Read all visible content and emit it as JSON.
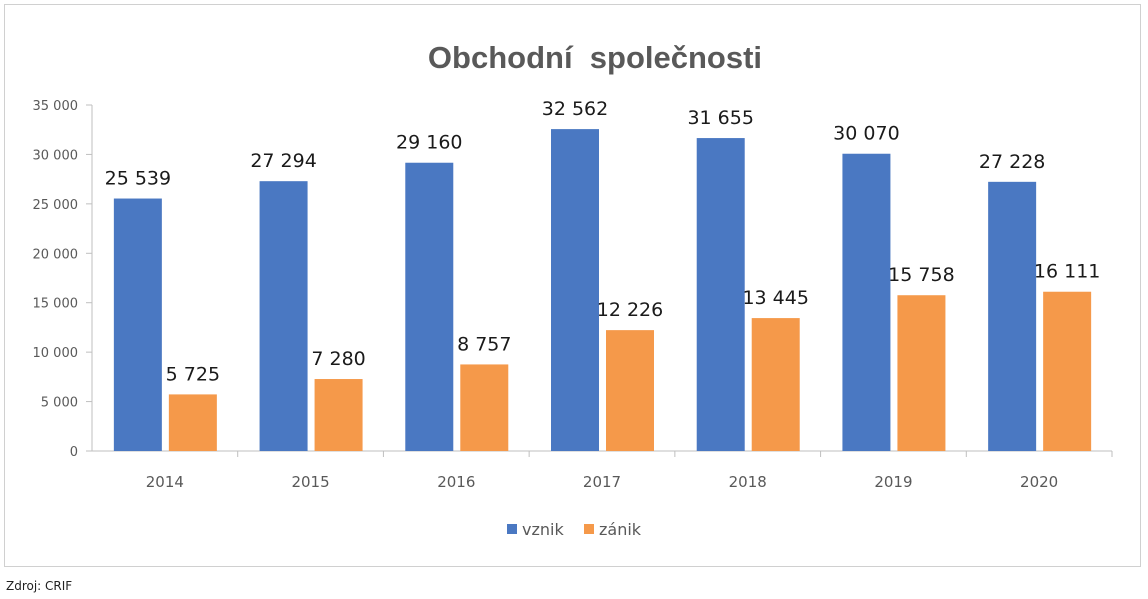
{
  "footer": {
    "source": "Zdroj: CRIF"
  },
  "colors": {
    "vznik": "#4a78c2",
    "zanik": "#f5994a",
    "axis_text": "#595959",
    "title_text": "#595959",
    "value_text": "#1a1a1a"
  },
  "chart_data": {
    "type": "bar",
    "title": "Obchodní  společnosti",
    "xlabel": "",
    "ylabel": "",
    "categories": [
      "2014",
      "2015",
      "2016",
      "2017",
      "2018",
      "2019",
      "2020"
    ],
    "ylim": [
      0,
      35000
    ],
    "yticks": [
      0,
      5000,
      10000,
      15000,
      20000,
      25000,
      30000,
      35000
    ],
    "ytick_labels": [
      "0",
      "5 000",
      "10 000",
      "15 000",
      "20 000",
      "25 000",
      "30 000",
      "35 000"
    ],
    "grid": false,
    "legend_position": "bottom",
    "series": [
      {
        "name": "vznik",
        "values": [
          25539,
          27294,
          29160,
          32562,
          31655,
          30070,
          27228
        ],
        "labels": [
          "25 539",
          "27 294",
          "29 160",
          "32 562",
          "31 655",
          "30 070",
          "27 228"
        ]
      },
      {
        "name": "zánik",
        "values": [
          5725,
          7280,
          8757,
          12226,
          13445,
          15758,
          16111
        ],
        "labels": [
          "5 725",
          "7 280",
          "8 757",
          "12 226",
          "13 445",
          "15 758",
          "16 111"
        ]
      }
    ]
  }
}
